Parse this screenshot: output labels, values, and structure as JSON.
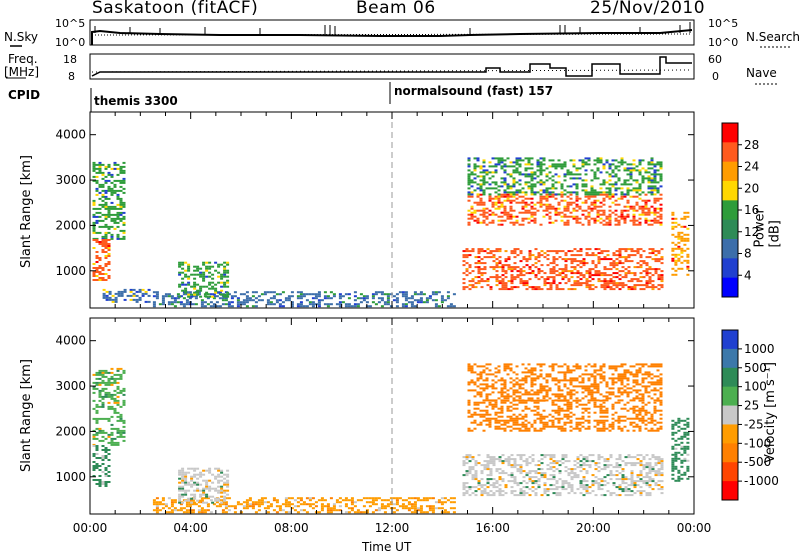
{
  "header": {
    "site": "Saskatoon (fitACF)",
    "beam": "Beam 06",
    "date": "25/Nov/2010"
  },
  "top_panels": {
    "nsky_label": "N.Sky",
    "nsky_ticks": [
      "10^5",
      "10^0"
    ],
    "nsearch_label": "N.Search",
    "nsearch_ticks": [
      "10^5",
      "10^0"
    ],
    "freq_label_1": "Freq.",
    "freq_label_2": "[MHz]",
    "freq_ticks": [
      "18",
      "8"
    ],
    "nave_label": "Nave",
    "nave_ticks": [
      "60",
      "0"
    ],
    "cpid_label": "CPID",
    "cpid_segments": [
      {
        "label": "themis 3300",
        "start_hour": 0
      },
      {
        "label": "normalsound (fast) 157",
        "start_hour": 12
      }
    ]
  },
  "chart_data": [
    {
      "type": "heatmap",
      "title": "Power",
      "xlabel": "",
      "ylabel": "Slant Range [km]",
      "xlim": [
        0,
        24
      ],
      "ylim": [
        180,
        4500
      ],
      "y_ticks": [
        1000,
        2000,
        3000,
        4000
      ],
      "colorbar": {
        "label": "Power [dB]",
        "ticks": [
          "28",
          "24",
          "20",
          "16",
          "12",
          "8",
          "4"
        ],
        "colors": [
          "#ff0000",
          "#ff5a1e",
          "#ff9c00",
          "#ffd700",
          "#2e9c3a",
          "#2e8b57",
          "#3c6eaa",
          "#2040d0",
          "#0000ff"
        ]
      },
      "echo_regions": [
        {
          "t0": 0.1,
          "t1": 1.4,
          "r0": 1700,
          "r1": 3400,
          "power": 10
        },
        {
          "t0": 0.1,
          "t1": 0.8,
          "r0": 800,
          "r1": 1700,
          "power": 22
        },
        {
          "t0": 0.5,
          "t1": 2.5,
          "r0": 300,
          "r1": 600,
          "power": 8
        },
        {
          "t0": 2.5,
          "t1": 14.5,
          "r0": 200,
          "r1": 550,
          "power": 6
        },
        {
          "t0": 3.5,
          "t1": 5.5,
          "r0": 450,
          "r1": 1200,
          "power": 10
        },
        {
          "t0": 14.8,
          "t1": 22.7,
          "r0": 600,
          "r1": 1500,
          "power": 24
        },
        {
          "t0": 15.0,
          "t1": 22.7,
          "r0": 2000,
          "r1": 2700,
          "power": 22
        },
        {
          "t0": 15.0,
          "t1": 22.7,
          "r0": 2700,
          "r1": 3500,
          "power": 10
        },
        {
          "t0": 23.1,
          "t1": 23.8,
          "r0": 900,
          "r1": 2300,
          "power": 20
        }
      ]
    },
    {
      "type": "heatmap",
      "title": "Velocity",
      "xlabel": "Time UT",
      "ylabel": "Slant Range [km]",
      "xlim": [
        0,
        24
      ],
      "ylim": [
        180,
        4500
      ],
      "x_ticks": [
        "00:00",
        "04:00",
        "08:00",
        "12:00",
        "16:00",
        "20:00",
        "00:00"
      ],
      "y_ticks": [
        1000,
        2000,
        3000,
        4000
      ],
      "colorbar": {
        "label": "Velocity [m s⁻¹]",
        "ticks": [
          "1000",
          "500",
          "100",
          "25",
          "-25",
          "-100",
          "-500",
          "-1000"
        ],
        "colors": [
          "#2040d0",
          "#3c78aa",
          "#2e8b57",
          "#4caf50",
          "#c8c8c8",
          "#ff9c00",
          "#ff8000",
          "#ff4500",
          "#ff0000"
        ]
      },
      "echo_regions": [
        {
          "t0": 0.1,
          "t1": 1.4,
          "r0": 1700,
          "r1": 3400,
          "velocity": 25
        },
        {
          "t0": 0.1,
          "t1": 0.8,
          "r0": 800,
          "r1": 1700,
          "velocity": 100
        },
        {
          "t0": 2.5,
          "t1": 14.5,
          "r0": 200,
          "r1": 550,
          "velocity": -100
        },
        {
          "t0": 3.5,
          "t1": 5.5,
          "r0": 450,
          "r1": 1200,
          "velocity": 0
        },
        {
          "t0": 14.8,
          "t1": 22.7,
          "r0": 600,
          "r1": 1500,
          "velocity": 0
        },
        {
          "t0": 15.0,
          "t1": 22.7,
          "r0": 2000,
          "r1": 2700,
          "velocity": -300
        },
        {
          "t0": 15.0,
          "t1": 22.7,
          "r0": 2700,
          "r1": 3500,
          "velocity": -200
        },
        {
          "t0": 23.1,
          "t1": 23.8,
          "r0": 900,
          "r1": 2300,
          "velocity": 100
        }
      ]
    }
  ]
}
